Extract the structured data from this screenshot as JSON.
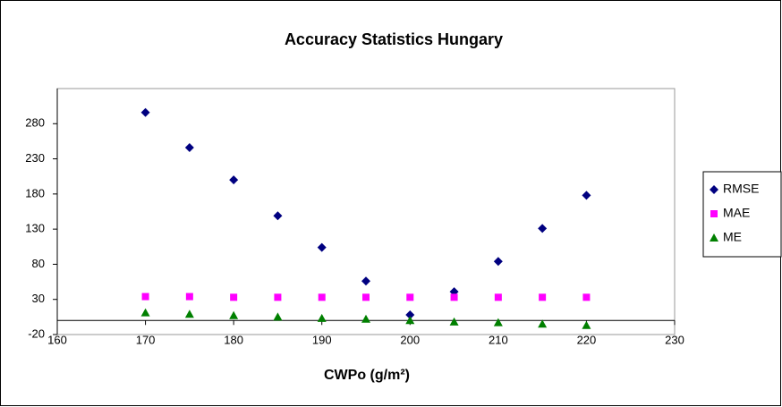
{
  "chart_data": {
    "type": "scatter",
    "title": "Accuracy Statistics Hungary",
    "xlabel": "CWPo (g/m²)",
    "x": [
      170,
      175,
      180,
      185,
      190,
      195,
      200,
      205,
      210,
      215,
      220
    ],
    "series": [
      {
        "name": "RMSE",
        "color": "#000080",
        "marker": "diamond",
        "values": [
          296,
          246,
          200,
          149,
          104,
          56,
          8,
          41,
          84,
          131,
          178
        ]
      },
      {
        "name": "MAE",
        "color": "#ff00ff",
        "marker": "square",
        "values": [
          34,
          34,
          33,
          33,
          33,
          33,
          33,
          33,
          33,
          33,
          33
        ]
      },
      {
        "name": "ME",
        "color": "#008000",
        "marker": "triangle",
        "values": [
          11,
          9,
          7,
          5,
          3,
          2,
          0,
          -2,
          -3,
          -5,
          -7
        ]
      }
    ],
    "xlim": [
      160,
      230
    ],
    "xticks": [
      160,
      170,
      180,
      190,
      200,
      210,
      220,
      230
    ],
    "ylim": [
      -20,
      330
    ],
    "yticks": [
      -20,
      30,
      80,
      130,
      180,
      230,
      280
    ],
    "grid": false,
    "legend": "right"
  }
}
